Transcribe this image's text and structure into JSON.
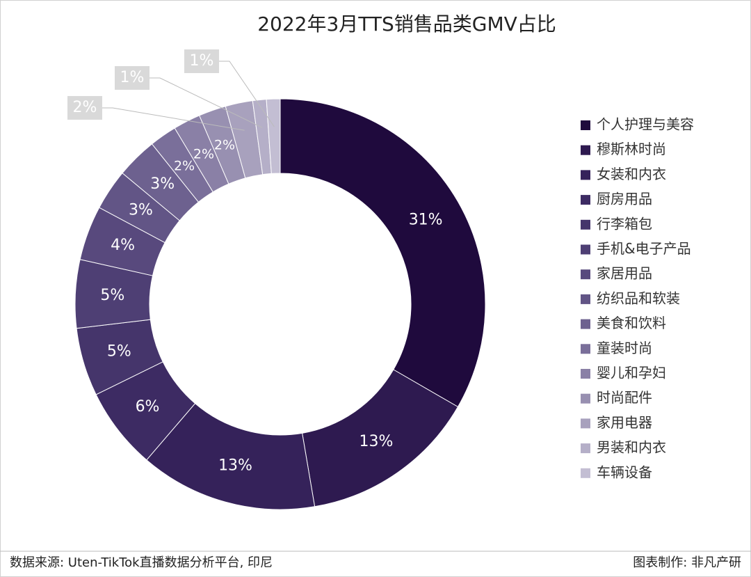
{
  "chart_data": {
    "type": "donut",
    "title": "2022年3月TTS销售品类GMV占比",
    "categories": [
      "个人护理与美容",
      "穆斯林时尚",
      "女装和内衣",
      "厨房用品",
      "行李箱包",
      "手机&电子产品",
      "家居用品",
      "纺织品和软装",
      "美食和饮料",
      "童装时尚",
      "婴儿和孕妇",
      "时尚配件",
      "家用电器",
      "男装和内衣",
      "车辆设备"
    ],
    "values": [
      31,
      13,
      13,
      6,
      5,
      5,
      4,
      3,
      3,
      2,
      2,
      2,
      2,
      1,
      1
    ],
    "value_labels": [
      "31%",
      "13%",
      "13%",
      "6%",
      "5%",
      "5%",
      "4%",
      "3%",
      "3%",
      "2%",
      "2%",
      "2%",
      "2%",
      "1%",
      "1%"
    ],
    "colors": [
      "#1f0a3d",
      "#2e1a50",
      "#35225a",
      "#3d2b63",
      "#45356b",
      "#4e3f74",
      "#58497d",
      "#625586",
      "#6d618f",
      "#7a6f9a",
      "#8a80a6",
      "#9890b1",
      "#a8a1bd",
      "#b5afc8",
      "#c3bed3"
    ],
    "legend": "right",
    "source": "数据来源: Uten-TikTok直播数据分析平台, 印尼",
    "credit": "图表制作: 非凡产研"
  }
}
